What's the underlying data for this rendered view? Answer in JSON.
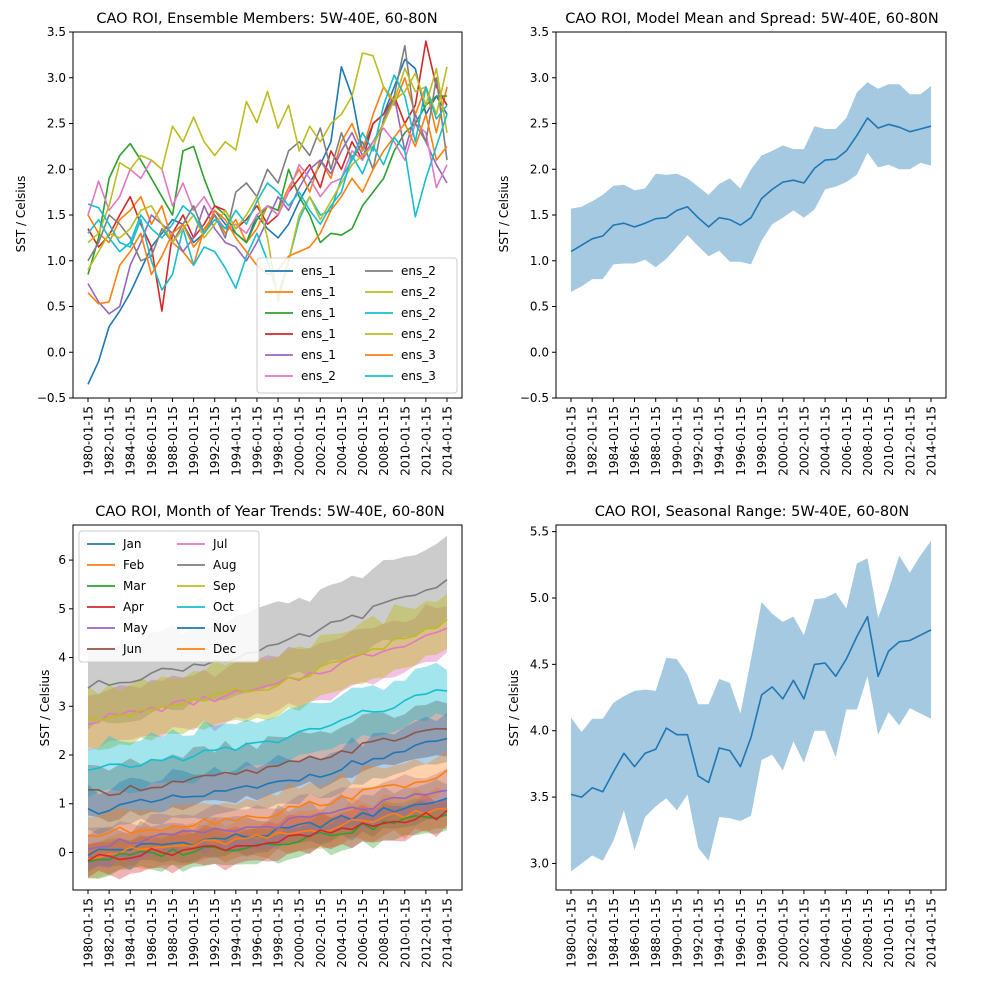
{
  "chart_data": [
    {
      "type": "line",
      "title": "CAO ROI, Ensemble Members: 5W-40E, 60-80N",
      "xlabel": "",
      "ylabel": "SST / Celsius",
      "ylim": [
        -0.5,
        3.5
      ],
      "yticks": [
        -0.5,
        0.0,
        0.5,
        1.0,
        1.5,
        2.0,
        2.5,
        3.0,
        3.5
      ],
      "ytick_labels": [
        "−0.5",
        "0.0",
        "0.5",
        "1.0",
        "1.5",
        "2.0",
        "2.5",
        "3.0",
        "3.5"
      ],
      "x_start_year": 1980,
      "x_end_year": 2014,
      "xtick_labels": [
        "1980-01-15",
        "1982-01-15",
        "1984-01-15",
        "1986-01-15",
        "1988-01-15",
        "1990-01-15",
        "1992-01-15",
        "1994-01-15",
        "1996-01-15",
        "1998-01-15",
        "2000-01-15",
        "2002-01-15",
        "2004-01-15",
        "2006-01-15",
        "2008-01-15",
        "2010-01-15",
        "2012-01-15",
        "2014-01-15"
      ],
      "grid": false,
      "legend": {
        "placement": "lower-right",
        "ncol": 2
      },
      "series": [
        {
          "name": "ens_1",
          "color": "#1f77b4",
          "values": [
            -0.35,
            -0.1,
            0.28,
            0.45,
            0.65,
            0.9,
            1.15,
            1.3,
            1.45,
            1.4,
            1.2,
            1.3,
            1.55,
            1.4,
            1.3,
            1.2,
            1.5,
            1.35,
            1.25,
            1.4,
            1.65,
            1.85,
            2.05,
            2.3,
            3.12,
            2.8,
            2.2,
            2.5,
            2.6,
            2.9,
            3.2,
            3.1,
            2.6,
            2.8,
            2.6
          ]
        },
        {
          "name": "ens_1",
          "color": "#ff7f0e",
          "values": [
            1.5,
            1.3,
            1.2,
            1.45,
            1.55,
            1.7,
            1.4,
            1.6,
            1.2,
            1.1,
            0.95,
            1.35,
            1.5,
            1.3,
            1.45,
            1.2,
            1.35,
            1.6,
            1.55,
            1.8,
            2.0,
            1.75,
            2.1,
            1.9,
            2.3,
            2.5,
            2.2,
            2.6,
            2.9,
            2.7,
            3.0,
            2.6,
            2.9,
            2.4,
            2.9
          ]
        },
        {
          "name": "ens_1",
          "color": "#2ca02c",
          "values": [
            0.85,
            1.25,
            1.9,
            2.15,
            2.28,
            2.1,
            1.9,
            1.7,
            1.5,
            2.2,
            2.25,
            1.9,
            1.6,
            1.5,
            1.3,
            1.2,
            1.45,
            1.6,
            1.55,
            2.0,
            1.7,
            1.5,
            1.2,
            1.3,
            1.28,
            1.35,
            1.6,
            1.75,
            1.9,
            2.2,
            2.4,
            2.5,
            2.7,
            2.8,
            2.8
          ]
        },
        {
          "name": "ens_1",
          "color": "#d62728",
          "values": [
            1.35,
            1.15,
            1.28,
            1.5,
            1.7,
            1.4,
            1.15,
            0.45,
            1.3,
            1.5,
            1.25,
            1.4,
            1.6,
            1.55,
            1.35,
            1.45,
            1.6,
            1.4,
            1.5,
            1.75,
            1.9,
            2.05,
            1.8,
            2.2,
            2.0,
            2.3,
            2.1,
            2.5,
            2.6,
            2.8,
            2.5,
            2.7,
            3.4,
            2.9,
            2.7
          ]
        },
        {
          "name": "ens_1",
          "color": "#9467bd",
          "values": [
            0.75,
            0.55,
            0.42,
            0.5,
            0.95,
            1.2,
            1.5,
            1.4,
            1.3,
            1.1,
            1.25,
            1.6,
            1.35,
            1.2,
            1.15,
            1.0,
            1.2,
            1.45,
            1.7,
            1.55,
            1.8,
            2.0,
            2.1,
            1.95,
            2.2,
            2.4,
            2.15,
            2.3,
            2.5,
            2.8,
            2.2,
            2.6,
            2.3,
            2.05,
            1.85
          ]
        },
        {
          "name": "ens_2",
          "color": "#e377c2",
          "values": [
            1.5,
            1.87,
            1.55,
            1.7,
            2.0,
            1.9,
            2.1,
            2.0,
            1.6,
            1.85,
            1.55,
            1.7,
            1.5,
            1.35,
            1.4,
            1.3,
            1.5,
            1.6,
            1.5,
            1.75,
            2.05,
            1.9,
            1.7,
            1.85,
            1.9,
            2.2,
            2.1,
            2.3,
            2.45,
            2.3,
            2.1,
            2.5,
            2.4,
            1.8,
            2.05
          ]
        },
        {
          "name": "ens_2",
          "color": "#7f7f7f",
          "values": [
            1.0,
            1.2,
            1.5,
            1.4,
            1.25,
            1.0,
            1.05,
            1.35,
            1.2,
            1.4,
            1.6,
            1.3,
            1.5,
            1.25,
            1.75,
            1.85,
            1.7,
            2.0,
            1.85,
            2.2,
            2.3,
            2.15,
            2.45,
            2.0,
            2.4,
            2.1,
            2.3,
            2.0,
            2.55,
            2.8,
            3.35,
            2.5,
            2.3,
            3.0,
            2.1
          ]
        },
        {
          "name": "ens_2",
          "color": "#bcbd22",
          "values": [
            1.2,
            1.3,
            1.6,
            2.07,
            2.0,
            2.15,
            2.1,
            2.0,
            2.47,
            2.3,
            2.57,
            2.3,
            2.15,
            2.3,
            2.21,
            2.74,
            2.51,
            2.85,
            2.45,
            2.7,
            2.2,
            2.47,
            2.3,
            2.5,
            2.6,
            2.8,
            3.27,
            3.24,
            2.9,
            2.75,
            3.1,
            2.85,
            2.9,
            2.6,
            3.12
          ]
        },
        {
          "name": "ens_2",
          "color": "#17becf",
          "values": [
            1.62,
            1.58,
            1.4,
            1.2,
            1.15,
            1.45,
            1.0,
            0.68,
            0.85,
            1.35,
            0.95,
            1.15,
            1.1,
            0.92,
            0.7,
            1.05,
            1.3,
            1.0,
            0.62,
            1.0,
            1.45,
            1.7,
            1.5,
            1.55,
            1.9,
            2.1,
            2.4,
            2.2,
            2.7,
            3.03,
            2.8,
            2.3,
            2.9,
            2.55,
            2.7
          ]
        },
        {
          "name": "ens_2",
          "color": "#bcbd22",
          "values": [
            0.9,
            1.1,
            1.3,
            1.25,
            1.35,
            1.55,
            1.6,
            1.4,
            1.2,
            1.35,
            1.5,
            1.25,
            1.4,
            1.55,
            1.35,
            1.5,
            1.7,
            1.25,
            0.55,
            1.0,
            1.5,
            1.7,
            1.45,
            1.65,
            1.85,
            2.05,
            2.15,
            2.25,
            2.5,
            2.75,
            2.85,
            3.05,
            2.7,
            3.1,
            2.4
          ]
        },
        {
          "name": "ens_3",
          "color": "#ff7f0e",
          "values": [
            0.65,
            0.53,
            0.55,
            0.95,
            1.1,
            1.3,
            0.85,
            1.05,
            1.3,
            1.4,
            1.15,
            1.3,
            1.55,
            1.45,
            1.25,
            1.1,
            0.95,
            0.85,
            0.9,
            1.05,
            1.1,
            1.15,
            1.3,
            1.55,
            1.7,
            1.9,
            1.75,
            2.0,
            2.2,
            2.35,
            2.5,
            2.25,
            2.6,
            2.1,
            2.25
          ]
        },
        {
          "name": "ens_3",
          "color": "#17becf",
          "values": [
            1.3,
            1.45,
            1.25,
            1.1,
            1.2,
            1.5,
            1.35,
            1.25,
            1.4,
            1.6,
            1.5,
            1.3,
            1.45,
            1.35,
            1.55,
            1.4,
            1.65,
            1.85,
            1.75,
            1.6,
            1.75,
            1.55,
            1.4,
            1.6,
            1.75,
            2.15,
            1.95,
            2.25,
            2.05,
            2.35,
            2.2,
            1.48,
            1.9,
            2.25,
            2.6
          ]
        }
      ]
    },
    {
      "type": "line",
      "title": "CAO ROI, Model Mean and Spread: 5W-40E, 60-80N",
      "xlabel": "",
      "ylabel": "SST / Celsius",
      "ylim": [
        -0.5,
        3.5
      ],
      "yticks": [
        -0.5,
        0.0,
        0.5,
        1.0,
        1.5,
        2.0,
        2.5,
        3.0,
        3.5
      ],
      "ytick_labels": [
        "−0.5",
        "0.0",
        "0.5",
        "1.0",
        "1.5",
        "2.0",
        "2.5",
        "3.0",
        "3.5"
      ],
      "x_start_year": 1980,
      "x_end_year": 2014,
      "xtick_labels": [
        "1980-01-15",
        "1982-01-15",
        "1984-01-15",
        "1986-01-15",
        "1988-01-15",
        "1990-01-15",
        "1992-01-15",
        "1994-01-15",
        "1996-01-15",
        "1998-01-15",
        "2000-01-15",
        "2002-01-15",
        "2004-01-15",
        "2006-01-15",
        "2008-01-15",
        "2010-01-15",
        "2012-01-15",
        "2014-01-15"
      ],
      "grid": false,
      "series": [
        {
          "color": "#1f77b4",
          "band_color": "#1f77b4",
          "values": [
            1.1,
            1.17,
            1.24,
            1.27,
            1.39,
            1.41,
            1.37,
            1.41,
            1.46,
            1.47,
            1.55,
            1.59,
            1.47,
            1.37,
            1.47,
            1.45,
            1.39,
            1.47,
            1.68,
            1.78,
            1.86,
            1.88,
            1.85,
            2.01,
            2.1,
            2.11,
            2.2,
            2.37,
            2.56,
            2.45,
            2.49,
            2.46,
            2.41,
            2.44,
            2.47
          ],
          "lower": [
            0.66,
            0.72,
            0.8,
            0.8,
            0.96,
            0.97,
            0.97,
            1.01,
            0.93,
            1.02,
            1.15,
            1.28,
            1.16,
            1.05,
            1.11,
            0.99,
            0.99,
            0.96,
            1.22,
            1.4,
            1.47,
            1.55,
            1.47,
            1.56,
            1.78,
            1.81,
            1.86,
            1.94,
            2.18,
            2.02,
            2.05,
            2.0,
            2.0,
            2.07,
            2.04
          ],
          "upper": [
            1.57,
            1.59,
            1.65,
            1.72,
            1.82,
            1.83,
            1.77,
            1.79,
            1.95,
            1.94,
            1.95,
            1.9,
            1.81,
            1.72,
            1.84,
            1.9,
            1.79,
            2.0,
            2.15,
            2.2,
            2.26,
            2.22,
            2.22,
            2.47,
            2.44,
            2.44,
            2.56,
            2.84,
            2.95,
            2.88,
            2.93,
            2.93,
            2.82,
            2.82,
            2.91
          ]
        }
      ]
    },
    {
      "type": "line",
      "title": "CAO ROI, Month of Year Trends: 5W-40E, 60-80N",
      "xlabel": "",
      "ylabel": "SST / Celsius",
      "ylim": [
        -0.77,
        6.72
      ],
      "yticks": [
        0,
        1,
        2,
        3,
        4,
        5,
        6
      ],
      "ytick_labels": [
        "0",
        "1",
        "2",
        "3",
        "4",
        "5",
        "6"
      ],
      "x_start_year": 1980,
      "x_end_year": 2014,
      "xtick_labels": [
        "1980-01-15",
        "1982-01-15",
        "1984-01-15",
        "1986-01-15",
        "1988-01-15",
        "1990-01-15",
        "1992-01-15",
        "1994-01-15",
        "1996-01-15",
        "1998-01-15",
        "2000-01-15",
        "2002-01-15",
        "2004-01-15",
        "2006-01-15",
        "2008-01-15",
        "2010-01-15",
        "2012-01-15",
        "2014-01-15"
      ],
      "grid": false,
      "legend": {
        "placement": "upper-left",
        "ncol": 2
      },
      "series": [
        {
          "name": "Jan",
          "color": "#1f77b4",
          "start": 0.0,
          "end": 1.1,
          "spread": 0.38
        },
        {
          "name": "Feb",
          "color": "#ff7f0e",
          "start": -0.05,
          "end": 0.95,
          "spread": 0.38
        },
        {
          "name": "Mar",
          "color": "#2ca02c",
          "start": -0.15,
          "end": 0.8,
          "spread": 0.35
        },
        {
          "name": "Apr",
          "color": "#d62728",
          "start": -0.12,
          "end": 0.8,
          "spread": 0.35
        },
        {
          "name": "May",
          "color": "#9467bd",
          "start": 0.15,
          "end": 1.25,
          "spread": 0.4
        },
        {
          "name": "Jun",
          "color": "#8c564b",
          "start": 1.2,
          "end": 2.6,
          "spread": 0.55
        },
        {
          "name": "Jul",
          "color": "#e377c2",
          "start": 2.7,
          "end": 4.6,
          "spread": 0.55
        },
        {
          "name": "Aug",
          "color": "#7f7f7f",
          "start": 3.4,
          "end": 5.55,
          "spread": 0.8
        },
        {
          "name": "Sep",
          "color": "#bcbd22",
          "start": 2.7,
          "end": 4.7,
          "spread": 0.6
        },
        {
          "name": "Oct",
          "color": "#17becf",
          "start": 1.65,
          "end": 3.35,
          "spread": 0.5
        },
        {
          "name": "Nov",
          "color": "#1f77b4",
          "start": 0.85,
          "end": 2.3,
          "spread": 0.45
        },
        {
          "name": "Dec",
          "color": "#ff7f0e",
          "start": 0.35,
          "end": 1.6,
          "spread": 0.4
        }
      ]
    },
    {
      "type": "line",
      "title": "CAO ROI, Seasonal Range: 5W-40E, 60-80N",
      "xlabel": "",
      "ylabel": "SST / Celsius",
      "ylim": [
        2.8,
        5.55
      ],
      "yticks": [
        3.0,
        3.5,
        4.0,
        4.5,
        5.0,
        5.5
      ],
      "ytick_labels": [
        "3.0",
        "3.5",
        "4.0",
        "4.5",
        "5.0",
        "5.5"
      ],
      "x_start_year": 1980,
      "x_end_year": 2014,
      "xtick_labels": [
        "1980-01-15",
        "1982-01-15",
        "1984-01-15",
        "1986-01-15",
        "1988-01-15",
        "1990-01-15",
        "1992-01-15",
        "1994-01-15",
        "1996-01-15",
        "1998-01-15",
        "2000-01-15",
        "2002-01-15",
        "2004-01-15",
        "2006-01-15",
        "2008-01-15",
        "2010-01-15",
        "2012-01-15",
        "2014-01-15"
      ],
      "grid": false,
      "series": [
        {
          "color": "#1f77b4",
          "band_color": "#1f77b4",
          "values": [
            3.52,
            3.5,
            3.57,
            3.54,
            3.69,
            3.83,
            3.73,
            3.83,
            3.86,
            4.02,
            3.97,
            3.97,
            3.66,
            3.61,
            3.87,
            3.85,
            3.73,
            3.95,
            4.27,
            4.33,
            4.24,
            4.38,
            4.24,
            4.5,
            4.51,
            4.41,
            4.54,
            4.71,
            4.86,
            4.41,
            4.6,
            4.67,
            4.68,
            4.72,
            4.76
          ],
          "lower": [
            2.94,
            3.0,
            3.06,
            3.02,
            3.17,
            3.4,
            3.1,
            3.35,
            3.43,
            3.49,
            3.4,
            3.52,
            3.12,
            3.02,
            3.35,
            3.34,
            3.32,
            3.36,
            3.78,
            3.82,
            3.7,
            3.92,
            3.76,
            4.0,
            4.0,
            3.8,
            4.16,
            4.16,
            4.41,
            3.97,
            4.14,
            4.04,
            4.17,
            4.13,
            4.09
          ],
          "upper": [
            4.1,
            3.99,
            4.09,
            4.09,
            4.21,
            4.26,
            4.3,
            4.31,
            4.3,
            4.55,
            4.54,
            4.42,
            4.2,
            4.2,
            4.39,
            4.36,
            4.13,
            4.54,
            4.97,
            4.88,
            4.82,
            4.86,
            4.72,
            4.99,
            5.0,
            5.04,
            4.92,
            5.26,
            5.3,
            4.85,
            5.06,
            5.32,
            5.19,
            5.32,
            5.43
          ]
        }
      ]
    }
  ]
}
